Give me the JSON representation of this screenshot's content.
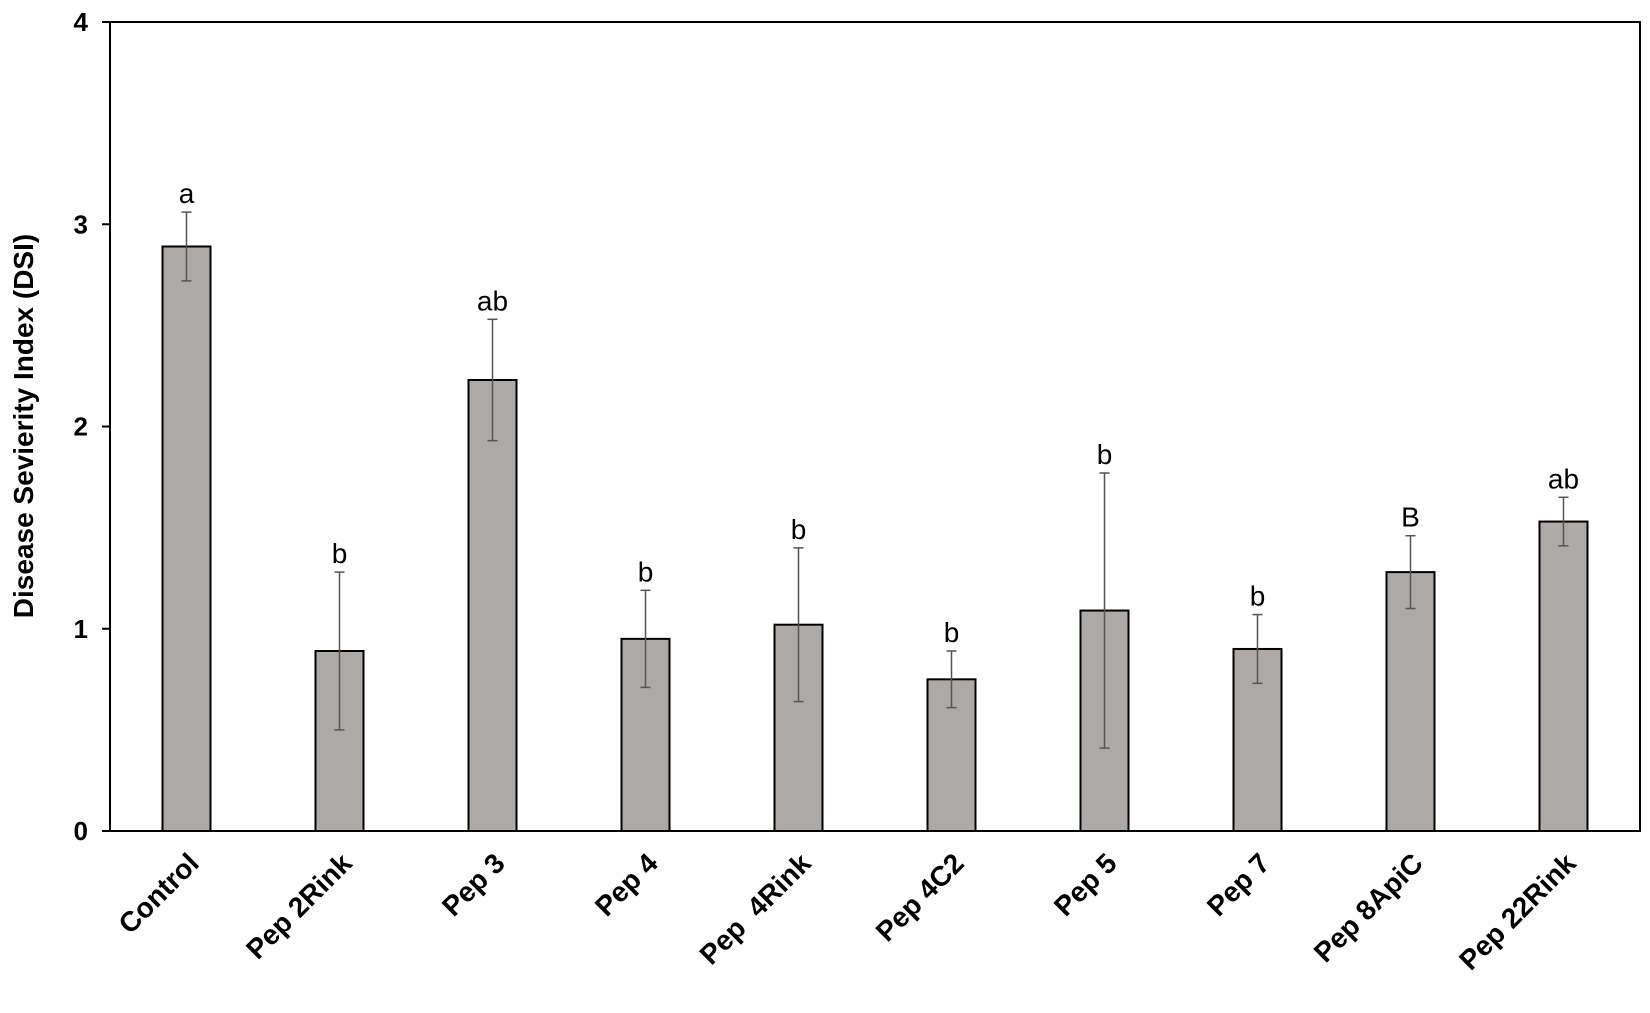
{
  "chart_data": {
    "type": "bar",
    "ylabel": "Disease Sevierity Index (DSI)",
    "xlabel": "",
    "ylim": [
      0,
      4
    ],
    "yticks": [
      0,
      1,
      2,
      3,
      4
    ],
    "grid": false,
    "bar_color": "#aca9a7",
    "categories": [
      "Control",
      "Pep 2Rink",
      "Pep 3",
      "Pep 4",
      "Pep  4Rink",
      "Pep 4C2",
      "Pep 5",
      "Pep 7",
      "Pep 8ApiC",
      "Pep 22Rink"
    ],
    "values": [
      2.89,
      0.89,
      2.23,
      0.95,
      1.02,
      0.75,
      1.09,
      0.9,
      1.28,
      1.53
    ],
    "errors": [
      0.17,
      0.39,
      0.3,
      0.24,
      0.38,
      0.14,
      0.68,
      0.17,
      0.18,
      0.12
    ],
    "labels": [
      "a",
      "b",
      "ab",
      "b",
      "b",
      "b",
      "b",
      "b",
      "B",
      "ab"
    ]
  }
}
